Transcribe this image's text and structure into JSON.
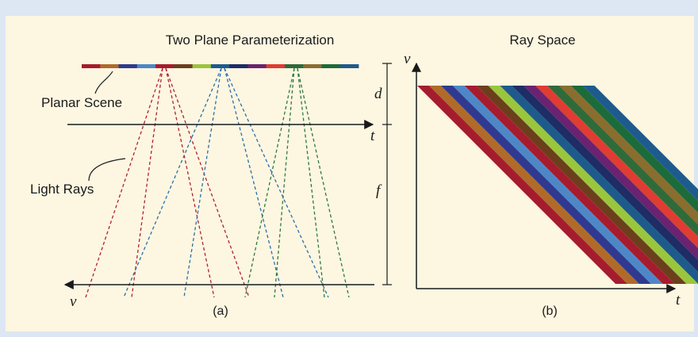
{
  "panel_a": {
    "title": "Two Plane Parameterization",
    "scene_label": "Planar Scene",
    "rays_label": "Light Rays",
    "t_label": "t",
    "v_label": "v",
    "d_label": "d",
    "f_label": "f",
    "caption": "(a)"
  },
  "panel_b": {
    "title": "Ray Space",
    "x_axis_label": "t",
    "y_axis_label": "v",
    "caption": "(b)"
  },
  "colors": {
    "scene_strip": [
      "#a51c2e",
      "#b06a2a",
      "#2f3a8f",
      "#4f86c6",
      "#a51c2e",
      "#6b3f1c",
      "#9bc53d",
      "#1e5b8c",
      "#1e2d66",
      "#6a2370",
      "#e03c31",
      "#2f6a3a",
      "#8a6d2f",
      "#1d6b3a",
      "#1e5b8c"
    ],
    "ray_bands": [
      "#a51c2e",
      "#b06a2a",
      "#2f3a8f",
      "#4f86c6",
      "#a51c2e",
      "#6b3f1c",
      "#9bc53d",
      "#1e5b8c",
      "#1e2d66",
      "#6a2370",
      "#e03c31",
      "#2f6a3a",
      "#8a6d2f",
      "#1d6b3a",
      "#1e5b8c"
    ],
    "ray_red": "#b1222f",
    "ray_blue": "#2a6fa8",
    "ray_green": "#2e7a3c"
  }
}
